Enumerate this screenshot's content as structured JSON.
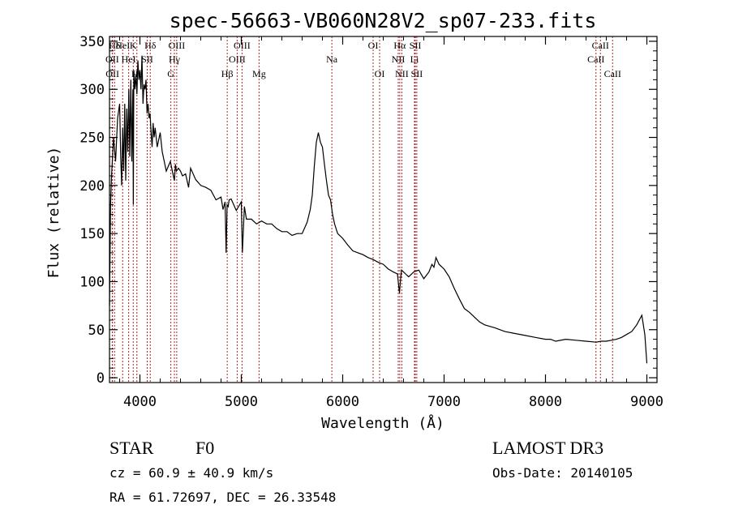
{
  "chart_data": {
    "type": "line",
    "title": "spec-56663-VB060N28V2_sp07-233.fits",
    "xlabel": "Wavelength (Å)",
    "ylabel": "Flux (relative)",
    "xlim": [
      3700,
      9100
    ],
    "ylim": [
      -5,
      355
    ],
    "x_ticks": [
      4000,
      5000,
      6000,
      7000,
      8000,
      9000
    ],
    "y_ticks": [
      0,
      50,
      100,
      150,
      200,
      250,
      300,
      350
    ],
    "grid": false,
    "series": [
      {
        "name": "spectrum",
        "x": [
          3700,
          3710,
          3720,
          3730,
          3740,
          3760,
          3780,
          3800,
          3810,
          3820,
          3830,
          3840,
          3850,
          3860,
          3870,
          3880,
          3890,
          3900,
          3910,
          3920,
          3930,
          3935,
          3940,
          3950,
          3960,
          3970,
          3980,
          3990,
          4000,
          4010,
          4020,
          4030,
          4040,
          4050,
          4060,
          4070,
          4080,
          4090,
          4100,
          4110,
          4120,
          4130,
          4140,
          4150,
          4170,
          4200,
          4220,
          4240,
          4260,
          4280,
          4300,
          4320,
          4340,
          4350,
          4360,
          4380,
          4400,
          4420,
          4450,
          4480,
          4500,
          4550,
          4600,
          4650,
          4700,
          4750,
          4800,
          4820,
          4840,
          4850,
          4860,
          4870,
          4880,
          4900,
          4950,
          5000,
          5010,
          5030,
          5050,
          5100,
          5150,
          5200,
          5250,
          5300,
          5350,
          5400,
          5450,
          5500,
          5550,
          5600,
          5650,
          5680,
          5700,
          5720,
          5740,
          5760,
          5780,
          5800,
          5820,
          5840,
          5860,
          5880,
          5900,
          5920,
          5950,
          6000,
          6050,
          6100,
          6150,
          6200,
          6250,
          6300,
          6350,
          6400,
          6450,
          6500,
          6540,
          6560,
          6570,
          6580,
          6600,
          6620,
          6650,
          6700,
          6750,
          6800,
          6850,
          6880,
          6900,
          6920,
          6950,
          7000,
          7050,
          7100,
          7150,
          7200,
          7250,
          7300,
          7350,
          7400,
          7500,
          7600,
          7700,
          7800,
          7900,
          8000,
          8050,
          8100,
          8200,
          8300,
          8400,
          8500,
          8550,
          8600,
          8650,
          8700,
          8750,
          8800,
          8850,
          8900,
          8950,
          8980,
          9000
        ],
        "y": [
          75,
          180,
          210,
          230,
          250,
          225,
          270,
          285,
          230,
          200,
          260,
          215,
          285,
          205,
          280,
          235,
          300,
          230,
          310,
          225,
          300,
          180,
          320,
          300,
          315,
          295,
          330,
          310,
          320,
          300,
          335,
          285,
          305,
          300,
          310,
          275,
          285,
          270,
          275,
          255,
          240,
          265,
          250,
          260,
          240,
          255,
          235,
          225,
          215,
          220,
          225,
          215,
          205,
          222,
          215,
          218,
          215,
          210,
          212,
          198,
          218,
          206,
          200,
          198,
          195,
          185,
          188,
          175,
          183,
          130,
          180,
          178,
          185,
          186,
          174,
          183,
          130,
          178,
          165,
          165,
          160,
          163,
          160,
          160,
          155,
          152,
          152,
          148,
          150,
          150,
          162,
          175,
          190,
          220,
          245,
          255,
          245,
          240,
          222,
          205,
          190,
          185,
          170,
          160,
          150,
          145,
          138,
          132,
          130,
          128,
          125,
          123,
          120,
          118,
          113,
          110,
          108,
          88,
          102,
          112,
          110,
          108,
          105,
          110,
          112,
          103,
          110,
          118,
          115,
          125,
          118,
          113,
          105,
          93,
          82,
          72,
          68,
          63,
          58,
          55,
          52,
          48,
          46,
          44,
          42,
          40,
          40,
          38,
          40,
          39,
          38,
          37,
          38,
          38,
          39,
          40,
          42,
          45,
          48,
          55,
          65,
          45,
          15
        ]
      }
    ],
    "emission_lines": [
      {
        "label": "Hδ",
        "x": 3750,
        "row": 0
      },
      {
        "label": "HeI",
        "x": 3830,
        "row": 0
      },
      {
        "label": "K",
        "x": 3934,
        "row": 0
      },
      {
        "label": "Hδ",
        "x": 4102,
        "row": 0
      },
      {
        "label": "OIII",
        "x": 4363,
        "row": 0
      },
      {
        "label": "OIII",
        "x": 5007,
        "row": 0
      },
      {
        "label": "OI",
        "x": 6300,
        "row": 0
      },
      {
        "label": "Hα",
        "x": 6563,
        "row": 0
      },
      {
        "label": "SII",
        "x": 6716,
        "row": 0
      },
      {
        "label": "CaII",
        "x": 8542,
        "row": 0
      },
      {
        "label": "OII",
        "x": 3727,
        "row": 1
      },
      {
        "label": "HeI",
        "x": 3889,
        "row": 1
      },
      {
        "label": "SII",
        "x": 4072,
        "row": 1
      },
      {
        "label": "Hγ",
        "x": 4340,
        "row": 1
      },
      {
        "label": "OIII",
        "x": 4959,
        "row": 1
      },
      {
        "label": "Na",
        "x": 5893,
        "row": 1
      },
      {
        "label": "NII",
        "x": 6548,
        "row": 1
      },
      {
        "label": "Li",
        "x": 6708,
        "row": 1
      },
      {
        "label": "CaII",
        "x": 8498,
        "row": 1
      },
      {
        "label": "OII",
        "x": 3729,
        "row": 2
      },
      {
        "label": "Hε",
        "x": 3970,
        "row": 2
      },
      {
        "label": "G",
        "x": 4305,
        "row": 2
      },
      {
        "label": "Hβ",
        "x": 4861,
        "row": 2
      },
      {
        "label": "Mg",
        "x": 5175,
        "row": 2
      },
      {
        "label": "OI",
        "x": 6364,
        "row": 2
      },
      {
        "label": "NII",
        "x": 6583,
        "row": 2
      },
      {
        "label": "SII",
        "x": 6731,
        "row": 2
      },
      {
        "label": "CaII",
        "x": 8662,
        "row": 2
      }
    ]
  },
  "info": {
    "object_class": "STAR",
    "subclass": "F0",
    "survey": "LAMOST DR3",
    "cz": "cz = 60.9 ± 40.9 km/s",
    "obs_date": "Obs-Date: 20140105",
    "coords": "RA =  61.72697, DEC =  26.33548"
  },
  "colors": {
    "spectrum": "#000000",
    "line_markers": "#b22222",
    "axes": "#000000"
  }
}
